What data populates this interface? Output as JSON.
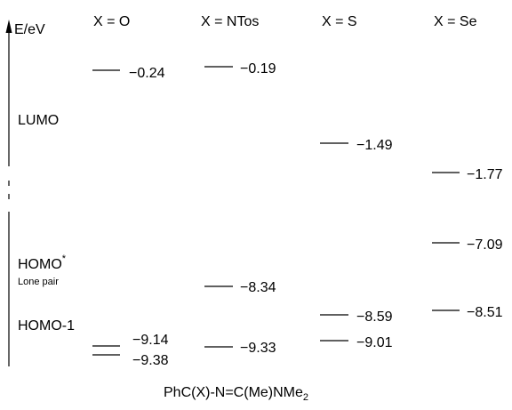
{
  "axis": {
    "label": "E/eV"
  },
  "columns": [
    {
      "label": "X = O"
    },
    {
      "label": "X = NTos"
    },
    {
      "label": "X = S"
    },
    {
      "label": "X = Se"
    }
  ],
  "row_labels": {
    "lumo": "LUMO",
    "homo_star": "HOMO",
    "homo_star_sup": "*",
    "lone_pair": "Lone pair",
    "homo1": "HOMO-1"
  },
  "levels": [
    {
      "column": 0,
      "value": "−0.24"
    },
    {
      "column": 1,
      "value": "−0.19"
    },
    {
      "column": 2,
      "value": "−1.49"
    },
    {
      "column": 3,
      "value": "−1.77"
    },
    {
      "column": 3,
      "value": "−7.09"
    },
    {
      "column": 1,
      "value": "−8.34"
    },
    {
      "column": 2,
      "value": "−8.59"
    },
    {
      "column": 3,
      "value": "−8.51"
    },
    {
      "column": 0,
      "value": "−9.14"
    },
    {
      "column": 0,
      "value": "−9.38"
    },
    {
      "column": 1,
      "value": "−9.33"
    },
    {
      "column": 2,
      "value": "−9.01"
    }
  ],
  "caption": {
    "main": "PhC(X)-N=C(Me)NMe",
    "subscript": "2"
  }
}
